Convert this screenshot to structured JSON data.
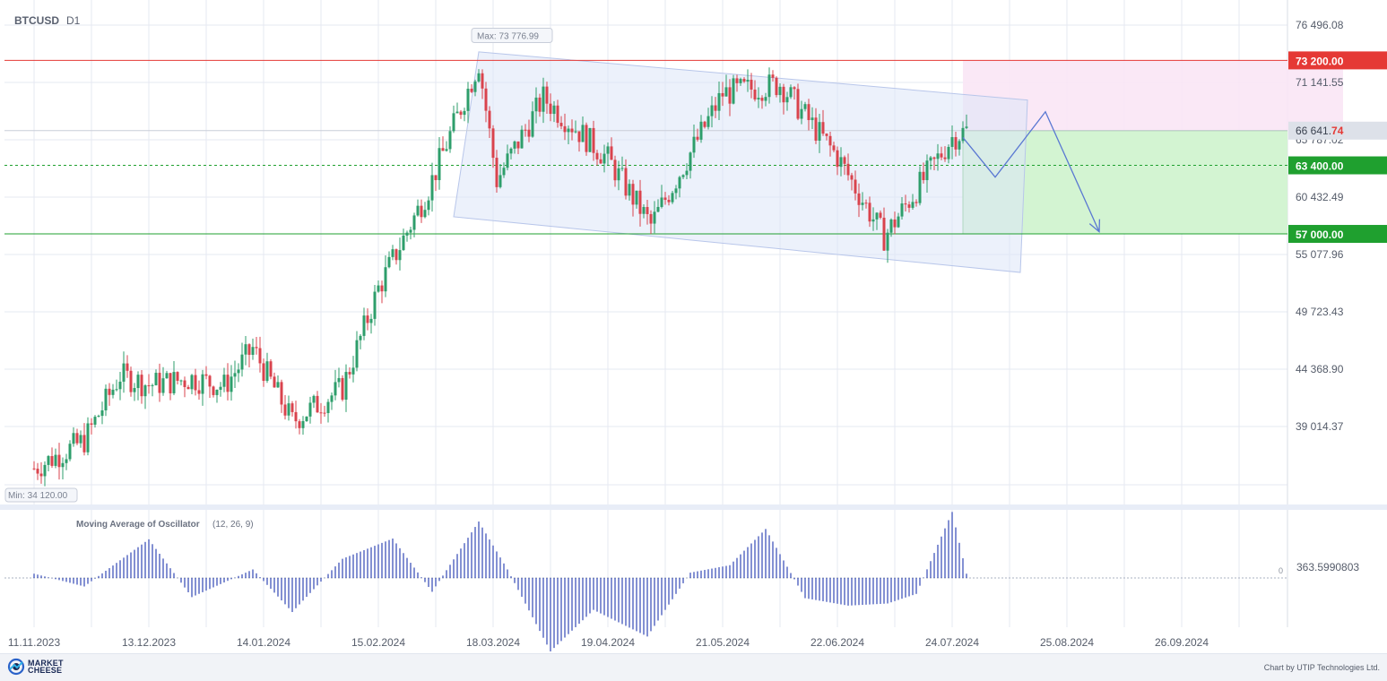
{
  "chart_data": {
    "type": "candlestick",
    "symbol": "BTCUSD",
    "timeframe": "D1",
    "y_axis_ticks": [
      "76 496.08",
      "71 141.55",
      "65 787.02",
      "60 432.49",
      "55 077.96",
      "49 723.43",
      "44 368.90",
      "39 014.37"
    ],
    "y_axis_tick_values": [
      76496.08,
      71141.55,
      65787.02,
      60432.49,
      55077.96,
      49723.43,
      44368.9,
      39014.37
    ],
    "x_axis_ticks": [
      "11.11.2023",
      "13.12.2023",
      "14.01.2024",
      "15.02.2024",
      "18.03.2024",
      "19.04.2024",
      "21.05.2024",
      "22.06.2024",
      "24.07.2024",
      "25.08.2024",
      "26.09.2024"
    ],
    "x_axis_tick_dates": [
      "2023-11-11",
      "2023-12-13",
      "2024-01-14",
      "2024-02-15",
      "2024-03-18",
      "2024-04-19",
      "2024-05-21",
      "2024-06-22",
      "2024-07-24",
      "2024-08-25",
      "2024-09-26"
    ],
    "current_price": {
      "label_main": "66 641.",
      "label_tail": "74",
      "value": 66641.74
    },
    "max_marker": {
      "label": "Max: 73 776.99",
      "date": "2024-03-14",
      "value": 73776.99
    },
    "min_marker": {
      "label": "Min: 34 120.00",
      "date": "2023-11-11",
      "value": 34120.0
    },
    "levels": [
      {
        "name": "resistance",
        "value": 73200,
        "label": "73 200.00",
        "color": "#e53935",
        "style": "solid"
      },
      {
        "name": "entry",
        "value": 63400,
        "label": "63 400.00",
        "color": "#1fa02f",
        "style": "dashed"
      },
      {
        "name": "target",
        "value": 57000,
        "label": "57 000.00",
        "color": "#1fa02f",
        "style": "solid"
      }
    ],
    "channel": {
      "upper": [
        {
          "date": "2024-03-14",
          "value": 74000
        },
        {
          "date": "2024-08-14",
          "value": 69500
        }
      ],
      "lower": [
        {
          "date": "2024-03-07",
          "value": 58600
        },
        {
          "date": "2024-08-12",
          "value": 53400
        }
      ]
    },
    "trade_zones": {
      "stop": {
        "from_date": "2024-07-27",
        "to_date": "2024-08-27",
        "low": 66641.74,
        "high": 73200,
        "color": "#f9e6f5"
      },
      "profit": {
        "from_date": "2024-07-27",
        "to_date": "2024-09-25",
        "low": 57000,
        "high": 66641.74,
        "color": "#d3f4d2"
      }
    },
    "forecast_path": [
      {
        "date": "2024-07-27",
        "value": 66000
      },
      {
        "date": "2024-08-05",
        "value": 62300
      },
      {
        "date": "2024-08-19",
        "value": 68400
      },
      {
        "date": "2024-09-03",
        "value": 57200
      }
    ],
    "ohlc_daily_closes_approx": [
      {
        "date": "2023-11-11",
        "close": 35100
      },
      {
        "date": "2023-11-25",
        "close": 37700
      },
      {
        "date": "2023-12-05",
        "close": 43800
      },
      {
        "date": "2023-12-13",
        "close": 42900
      },
      {
        "date": "2023-12-25",
        "close": 43500
      },
      {
        "date": "2024-01-03",
        "close": 42800
      },
      {
        "date": "2024-01-11",
        "close": 46300
      },
      {
        "date": "2024-01-22",
        "close": 39500
      },
      {
        "date": "2024-02-05",
        "close": 42600
      },
      {
        "date": "2024-02-15",
        "close": 51900
      },
      {
        "date": "2024-02-29",
        "close": 61200
      },
      {
        "date": "2024-03-14",
        "close": 73000
      },
      {
        "date": "2024-03-19",
        "close": 62000
      },
      {
        "date": "2024-04-01",
        "close": 69700
      },
      {
        "date": "2024-04-19",
        "close": 64000
      },
      {
        "date": "2024-05-01",
        "close": 57800
      },
      {
        "date": "2024-05-21",
        "close": 70100
      },
      {
        "date": "2024-06-06",
        "close": 71000
      },
      {
        "date": "2024-06-22",
        "close": 64200
      },
      {
        "date": "2024-07-05",
        "close": 56700
      },
      {
        "date": "2024-07-24",
        "close": 66000
      },
      {
        "date": "2024-07-28",
        "close": 66641.74
      }
    ],
    "indicator": {
      "name": "Moving Average of Oscillator",
      "params": "(12, 26, 9)",
      "zero_label": "0",
      "scale_label": "363.5990803",
      "histogram_waypoints": [
        {
          "date": "2023-11-11",
          "value": 40
        },
        {
          "date": "2023-11-25",
          "value": -80
        },
        {
          "date": "2023-12-13",
          "value": 363
        },
        {
          "date": "2023-12-25",
          "value": -180
        },
        {
          "date": "2024-01-11",
          "value": 80
        },
        {
          "date": "2024-01-22",
          "value": -320
        },
        {
          "date": "2024-02-05",
          "value": 180
        },
        {
          "date": "2024-02-19",
          "value": 370
        },
        {
          "date": "2024-03-01",
          "value": -130
        },
        {
          "date": "2024-03-14",
          "value": 530
        },
        {
          "date": "2024-03-22",
          "value": 80
        },
        {
          "date": "2024-04-03",
          "value": -690
        },
        {
          "date": "2024-04-15",
          "value": -300
        },
        {
          "date": "2024-04-30",
          "value": -550
        },
        {
          "date": "2024-05-12",
          "value": 50
        },
        {
          "date": "2024-05-23",
          "value": 120
        },
        {
          "date": "2024-06-02",
          "value": 460
        },
        {
          "date": "2024-06-13",
          "value": -190
        },
        {
          "date": "2024-06-25",
          "value": -260
        },
        {
          "date": "2024-07-06",
          "value": -240
        },
        {
          "date": "2024-07-14",
          "value": -150
        },
        {
          "date": "2024-07-24",
          "value": 620
        },
        {
          "date": "2024-07-28",
          "value": 40
        }
      ]
    }
  },
  "footer": {
    "brand_line1": "MARKET",
    "brand_line2": "CHEESE",
    "credit": "Chart by UTIP Technologies Ltd."
  },
  "colors": {
    "up": "#2e9e6b",
    "down": "#d9434d",
    "grid": "#e6e9f2",
    "axis_text": "#555c6a",
    "histogram": "#3147b5",
    "forecast": "#5a78d2"
  }
}
